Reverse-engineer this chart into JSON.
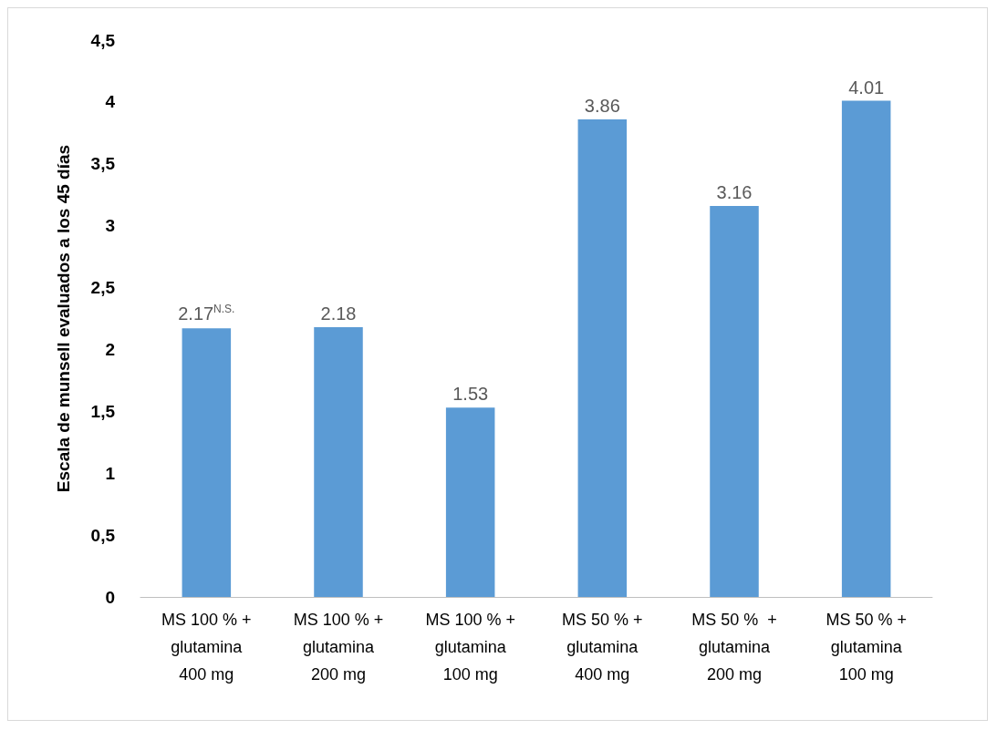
{
  "chart_data": {
    "type": "bar",
    "ylabel": "Escala de munsell evaluados a los 45 días",
    "categories": [
      "MS 100 % +\nglutamina\n400 mg",
      "MS 100 % +\nglutamina\n200 mg",
      "MS 100 % +\nglutamina\n100 mg",
      "MS 50 % +\nglutamina\n400 mg",
      "MS 50 %  +\nglutamina\n200 mg",
      "MS 50 % +\nglutamina\n100 mg"
    ],
    "values": [
      2.17,
      2.18,
      1.53,
      3.86,
      3.16,
      4.01
    ],
    "value_labels": [
      "2.17$^{N.S.}$",
      "2.18",
      "1.53",
      "3.86",
      "3.16",
      "4.01"
    ],
    "color": "#5b9bd5",
    "ylim": [
      0,
      4.5
    ],
    "yticks": [
      0,
      {
        "value": 0.5,
        "label": "0,5"
      },
      1,
      {
        "value": 1.5,
        "label": "1,5"
      },
      2,
      {
        "value": 2.5,
        "label": "2,5"
      },
      3,
      {
        "value": 3.5,
        "label": "3,5"
      },
      4,
      {
        "value": 4.5,
        "label": "4,5"
      }
    ],
    "grid": false
  }
}
